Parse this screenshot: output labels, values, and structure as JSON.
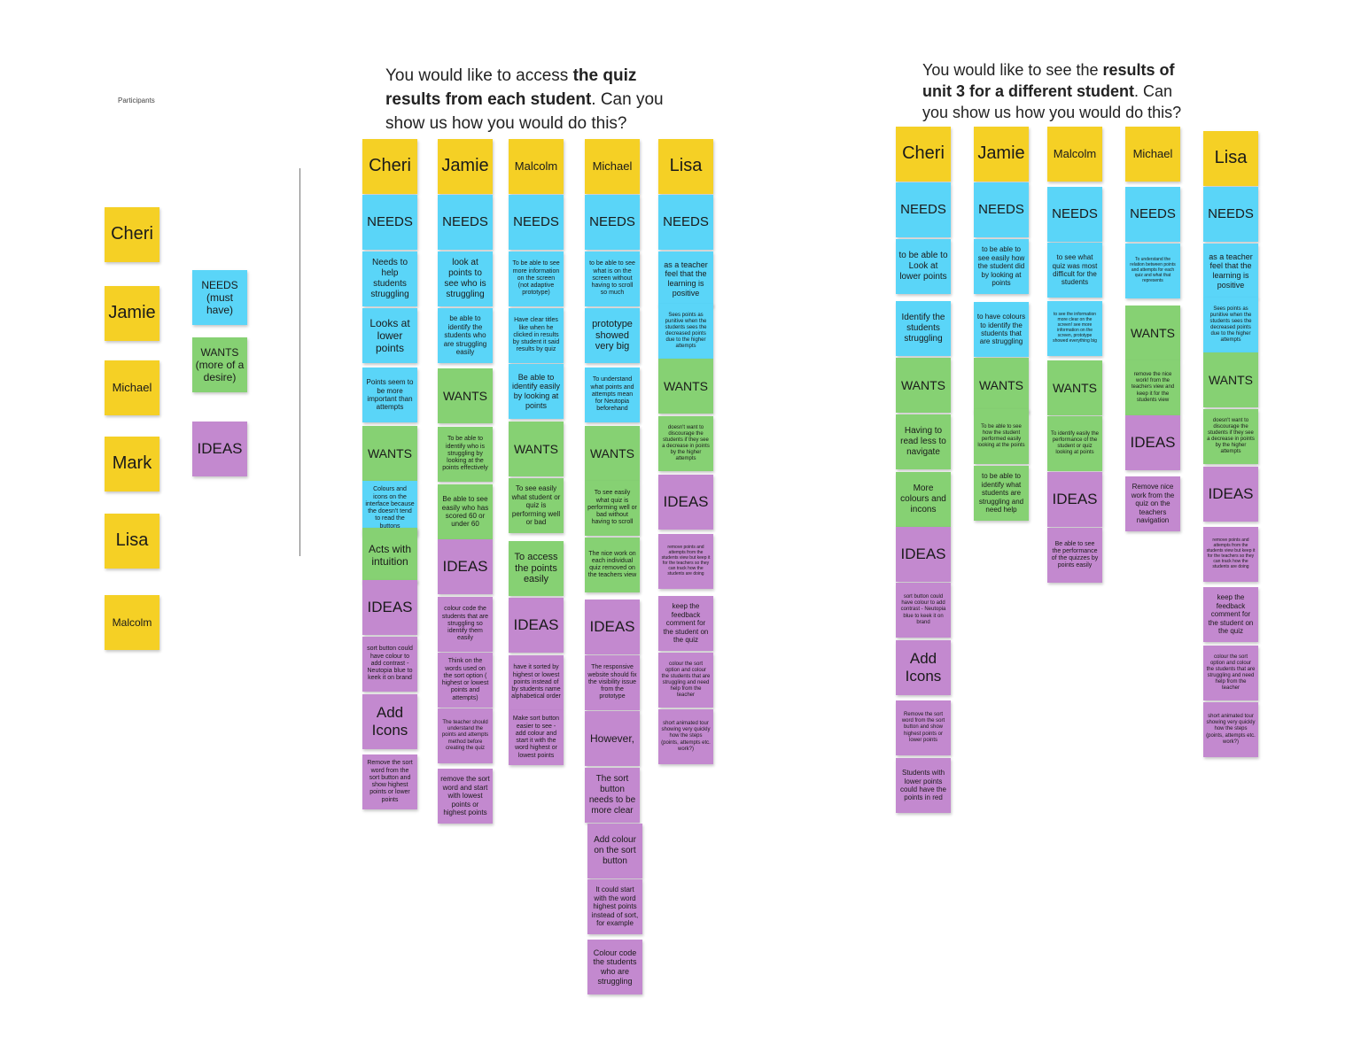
{
  "participants_label": "Participants",
  "colors": {
    "yellow": "#f5d025",
    "blue": "#5ad5f8",
    "green": "#86d173",
    "purple": "#c389cf"
  },
  "legend": {
    "participants": [
      "Cheri",
      "Jamie",
      "Michael",
      "Mark",
      "Lisa",
      "Malcolm"
    ],
    "needs": "NEEDS (must have)",
    "wants": "WANTS (more of a desire)",
    "ideas": "IDEAS"
  },
  "task1": {
    "title_pre": "You would like to access ",
    "title_bold": "the quiz results from each student",
    "title_post": ". Can you show us how you would do this?",
    "notes": [
      "Cheri",
      "NEEDS",
      "Needs to help students struggling",
      "Looks at lower points",
      "Points seem to be more important than attempts",
      "WANTS",
      "Colours and icons on the interface because the doesn't tend to read the buttons",
      "Acts with intuition",
      "IDEAS",
      "sort button could have colour to add contrast - Neutopia blue to keek it on brand",
      "Add Icons",
      "Remove the sort word from the sort button and show highest points or lower points",
      "Jamie",
      "NEEDS",
      "look at points to see who is struggling",
      "be able to identify the students who are struggling easily",
      "WANTS",
      "To be able to identify who is struggling by looking at the points effectively",
      "Be able to see easily who has scored 60 or under 60",
      "IDEAS",
      "colour code the students that are struggling so identify them easily",
      "Think on the words used on the sort option ( highest or lowest points and attempts)",
      "The teacher should understand the points and attempts method before creating the quiz",
      "remove the sort word and start with lowest points or highest points",
      "Malcolm",
      "NEEDS",
      "To be able to see more information on the screen (not adaptive prototype)",
      "Have clear titles like when he clicked in results by student it said results by quiz",
      "Be able to identify easily by looking at points",
      "WANTS",
      "To see easily what student or quiz is performing well or bad",
      "To access the points easily",
      "IDEAS",
      "have it sorted by highest or lowest points instead of by students name alphabetical order",
      "Make sort button easier to see - add colour and start it with the word highest or lowest points",
      "Michael",
      "NEEDS",
      "to be able to see what is on the screen without having to scroll so much",
      "prototype showed very big",
      "To understand what points and attempts mean for Neutopia beforehand",
      "WANTS",
      "To see easily what quiz is performing well or bad without having to scroll",
      "The nice work on each individual quiz removed on the teachers view",
      "IDEAS",
      "The responsive website should fix the visibility issue from the prototype",
      "However,",
      "The sort button needs to be more clear",
      "Add colour on the sort button",
      "It could start with the word highest points instead of sort, for example",
      "Colour code the students who are struggling",
      "Lisa",
      "NEEDS",
      "as a teacher feel that the learning is positive",
      "Sees points as punitive when the students sees the decreased points due to the higher attempts",
      "WANTS",
      "doesn't want to discourage the students if they see a decrease in points by the higher attempts",
      "IDEAS",
      "remove points and attempts from the students view but keep it for the teachers so they can track how the students are doing",
      "keep the feedback comment for the student on the quiz",
      "colour the sort option and colour the students that are struggling and need help from the teacher",
      "short animated tour showing very quickly how the steps (points, attempts etc. work?)"
    ]
  },
  "task2": {
    "title_pre": "You would like to see the ",
    "title_bold": "results of unit 3 for a different student",
    "title_post": ". Can you show us how you would do this?",
    "notes": [
      "Cheri",
      "NEEDS",
      "to be able to Look at lower points",
      "Identify the students struggling",
      "WANTS",
      "Having to read less to navigate",
      "More colours and incons",
      "IDEAS",
      "sort button could have colour to add contrast - Neutopia blue to keek it on brand",
      "Add Icons",
      "Remove the sort word from the sort button and show highest points or lower points",
      "Students with lower points could have the points in red",
      "Jamie",
      "NEEDS",
      "to be able to see easily how the student did by looking at points",
      "to have colours to identify the students that are struggling",
      "WANTS",
      "To be able to see how the student performed easily looking at the points",
      "to be able to identify what students are struggling and need help",
      "Malcolm",
      "NEEDS",
      "to see what quiz was most difficult for the students",
      "to see the information more clear on the screen! see more information on the screen, prototype showed everything big",
      "WANTS",
      "To identify easily the performance of the student or quiz looking at points",
      "IDEAS",
      "Be able to see the performance of the quizzes by points easily",
      "Michael",
      "NEEDS",
      "To understand the relation between points and attempts for each quiz and what that represents",
      "WANTS",
      "remove the nice work! from the teachers view and keep it for the students view",
      "IDEAS",
      "Remove nice work from the quiz on the teachers navigation",
      "Lisa",
      "NEEDS",
      "as a teacher feel that the learning is positive",
      "Sees points as punitive when the students sees the decreased points due to the higher attempts",
      "WANTS",
      "doesn't want to discourage the students if they see a decrease in points by the higher attempts",
      "IDEAS",
      "remove points and attempts from the students view but keep it for the teachers so they can track how the students are doing",
      "keep the feedback comment for the student on the quiz",
      "colour the sort option and colour the students that are struggling and need help from the teacher",
      "short animated tour showing very quickly how the steps (points, attempts etc. work?)"
    ]
  }
}
